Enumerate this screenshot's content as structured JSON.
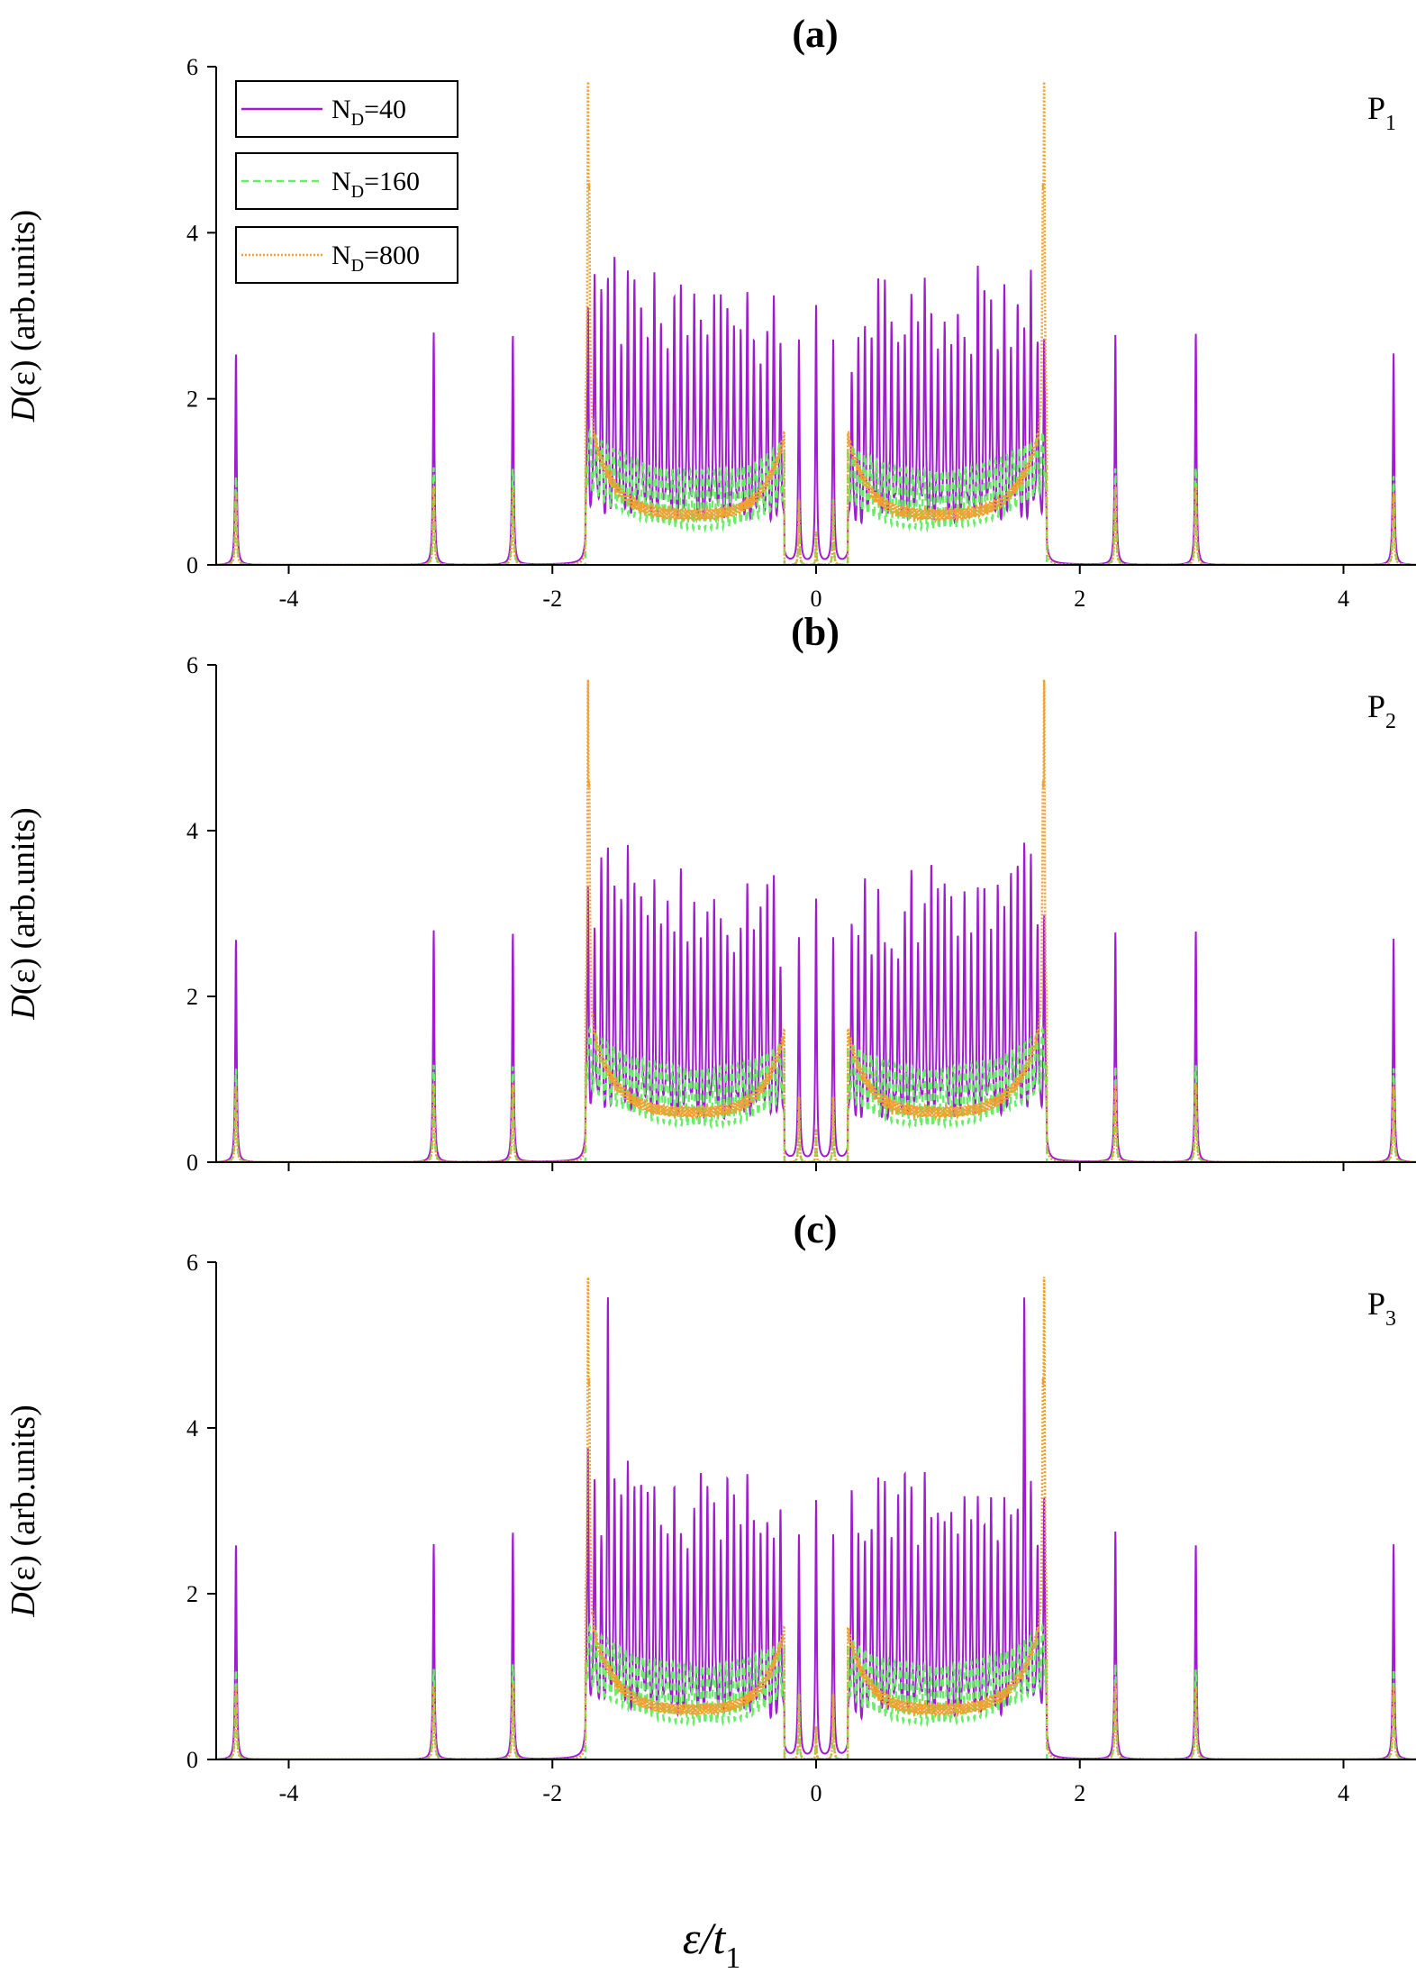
{
  "figure": {
    "xlabel_main": "ε/t",
    "xlabel_sub": "1",
    "ylabel_func": "D",
    "ylabel_rest": "(ε) (arb.units)"
  },
  "legend": [
    {
      "base": "N",
      "sub": "D",
      "value": "=40",
      "color": "#a01ad0",
      "dash": "solid"
    },
    {
      "base": "N",
      "sub": "D",
      "value": "=160",
      "color": "#66ee66",
      "dash": "dashed"
    },
    {
      "base": "N",
      "sub": "D",
      "value": "=800",
      "color": "#f0a030",
      "dash": "dotted"
    }
  ],
  "chart_data": [
    {
      "type": "line",
      "title": "(a)",
      "corner_base": "P",
      "corner_sub": "1",
      "xlim": [
        -4.55,
        4.55
      ],
      "ylim": [
        0,
        6
      ],
      "x_ticks": [
        -4,
        -2,
        0,
        2,
        4
      ],
      "x_tick_labels": [
        "-4",
        "-2",
        "0",
        "2",
        "4"
      ],
      "y_ticks": [
        0,
        2,
        4,
        6
      ],
      "y_tick_labels": [
        "0",
        "2",
        "4",
        "6"
      ],
      "isolated_peaks": [
        {
          "x": -4.4,
          "h40": 2.55
        },
        {
          "x": -2.9,
          "h40": 2.8
        },
        {
          "x": -2.3,
          "h40": 2.77
        },
        {
          "x": 2.27,
          "h40": 2.77
        },
        {
          "x": 2.88,
          "h40": 2.8
        },
        {
          "x": 4.38,
          "h40": 2.55
        }
      ],
      "band_edge": 1.75,
      "gap_edge": 0.24,
      "center_peak": 3.1,
      "edge_peak_800": 4.05,
      "max_40": 3.4,
      "series": [
        {
          "name": "N_D=40",
          "color": "#a01ad0"
        },
        {
          "name": "N_D=160",
          "color": "#66ee66"
        },
        {
          "name": "N_D=800",
          "color": "#f0a030"
        }
      ]
    },
    {
      "type": "line",
      "title": "(b)",
      "corner_base": "P",
      "corner_sub": "2",
      "xlim": [
        -4.55,
        4.55
      ],
      "ylim": [
        0,
        6
      ],
      "x_ticks": [
        -4,
        -2,
        0,
        2,
        4
      ],
      "x_tick_labels": [
        "",
        "",
        "",
        "",
        ""
      ],
      "y_ticks": [
        0,
        2,
        4,
        6
      ],
      "y_tick_labels": [
        "0",
        "2",
        "4",
        "6"
      ],
      "isolated_peaks": [
        {
          "x": -4.4,
          "h40": 2.7
        },
        {
          "x": -2.9,
          "h40": 2.8
        },
        {
          "x": -2.3,
          "h40": 2.77
        },
        {
          "x": 2.27,
          "h40": 2.77
        },
        {
          "x": 2.88,
          "h40": 2.8
        },
        {
          "x": 4.38,
          "h40": 2.7
        }
      ],
      "band_edge": 1.75,
      "gap_edge": 0.24,
      "center_peak": 3.15,
      "edge_peak_800": 4.05,
      "max_40": 3.3,
      "series": [
        {
          "name": "N_D=40",
          "color": "#a01ad0"
        },
        {
          "name": "N_D=160",
          "color": "#66ee66"
        },
        {
          "name": "N_D=800",
          "color": "#f0a030"
        }
      ]
    },
    {
      "type": "line",
      "title": "(c)",
      "corner_base": "P",
      "corner_sub": "3",
      "xlim": [
        -4.55,
        4.55
      ],
      "ylim": [
        0,
        6
      ],
      "x_ticks": [
        -4,
        -2,
        0,
        2,
        4
      ],
      "x_tick_labels": [
        "-4",
        "-2",
        "0",
        "2",
        "4"
      ],
      "y_ticks": [
        0,
        2,
        4,
        6
      ],
      "y_tick_labels": [
        "0",
        "2",
        "4",
        "6"
      ],
      "isolated_peaks": [
        {
          "x": -4.4,
          "h40": 2.6
        },
        {
          "x": -2.9,
          "h40": 2.6
        },
        {
          "x": -2.3,
          "h40": 2.75
        },
        {
          "x": 2.27,
          "h40": 2.75
        },
        {
          "x": 2.88,
          "h40": 2.6
        },
        {
          "x": 4.38,
          "h40": 2.6
        }
      ],
      "band_edge": 1.75,
      "gap_edge": 0.24,
      "center_peak": 3.1,
      "edge_peak_800": 4.05,
      "max_40": 5.05,
      "series": [
        {
          "name": "N_D=40",
          "color": "#a01ad0"
        },
        {
          "name": "N_D=160",
          "color": "#66ee66"
        },
        {
          "name": "N_D=800",
          "color": "#f0a030"
        }
      ]
    }
  ]
}
